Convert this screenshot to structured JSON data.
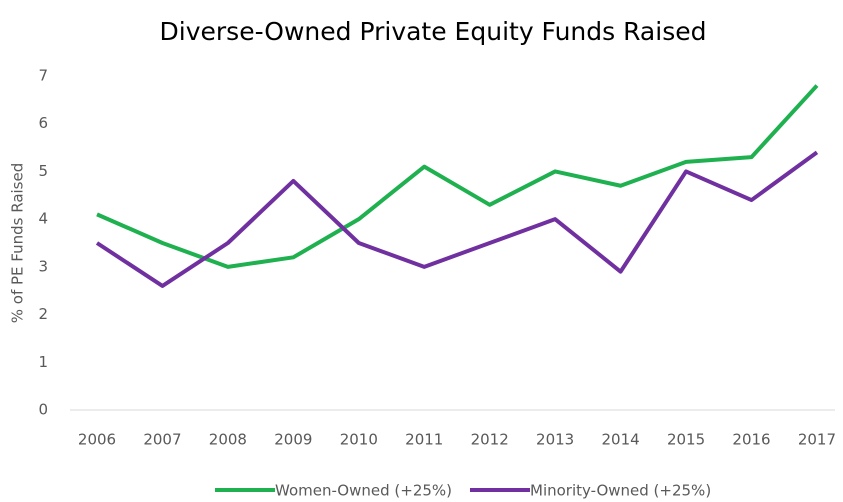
{
  "chart_data": {
    "type": "line",
    "title": "Diverse-Owned Private Equity Funds Raised",
    "y_label": "% of PE Funds Raised",
    "categories": [
      "2006",
      "2007",
      "2008",
      "2009",
      "2010",
      "2011",
      "2012",
      "2013",
      "2014",
      "2015",
      "2016",
      "2017"
    ],
    "series": [
      {
        "name": "Women-Owned (+25%)",
        "color": "#1fb04f",
        "values": [
          4.1,
          3.5,
          3.0,
          3.2,
          4.0,
          5.1,
          4.3,
          5.0,
          4.7,
          5.2,
          5.3,
          6.8
        ]
      },
      {
        "name": "Minority-Owned (+25%)",
        "color": "#7030a0",
        "values": [
          3.5,
          2.6,
          3.5,
          4.8,
          3.5,
          3.0,
          3.5,
          4.0,
          2.9,
          5.0,
          4.4,
          5.4
        ]
      }
    ],
    "ylim": [
      0,
      7
    ],
    "yticks": [
      0,
      1,
      2,
      3,
      4,
      5,
      6,
      7
    ],
    "grid": false,
    "legend": "bottom"
  }
}
